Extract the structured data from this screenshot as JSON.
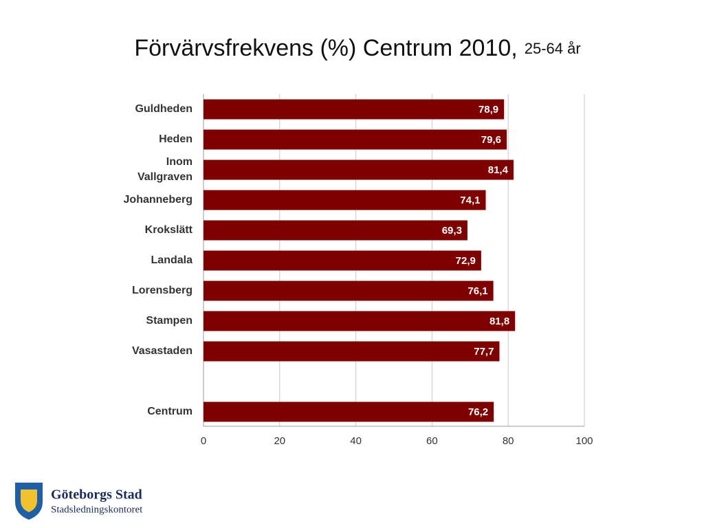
{
  "chart_data": {
    "type": "bar",
    "orientation": "horizontal",
    "title": "Förvärvsfrekvens (%) Centrum 2010,",
    "subtitle": "25-64 år",
    "categories": [
      "Guldheden",
      "Heden",
      "Inom Vallgraven",
      "Johanneberg",
      "Krokslätt",
      "Landala",
      "Lorensberg",
      "Stampen",
      "Vasastaden",
      null,
      "Centrum"
    ],
    "values": [
      78.9,
      79.6,
      81.4,
      74.1,
      69.3,
      72.9,
      76.1,
      81.8,
      77.7,
      null,
      76.2
    ],
    "value_labels": [
      "78,9",
      "79,6",
      "81,4",
      "74,1",
      "69,3",
      "72,9",
      "76,1",
      "81,8",
      "77,7",
      null,
      "76,2"
    ],
    "color": "#7f0000",
    "xlim": [
      0,
      100
    ],
    "xticks": [
      0,
      20,
      40,
      60,
      80,
      100
    ],
    "grid": true
  },
  "logo": {
    "name": "Göteborgs Stad",
    "unit": "Stadsledningskontoret"
  }
}
